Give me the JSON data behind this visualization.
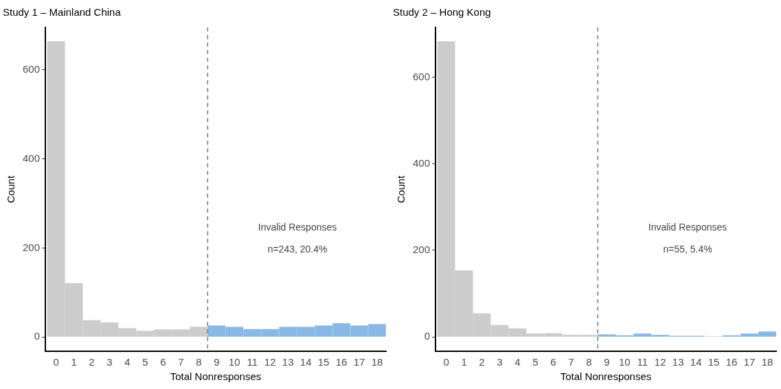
{
  "chart_data": [
    {
      "type": "histogram",
      "title": "Study 1 – Mainland China",
      "xlabel": "Total Nonresponses",
      "ylabel": "Count",
      "bins": [
        -0.5,
        0.5,
        1.5,
        2.5,
        3.5,
        4.5,
        5.5,
        6.5,
        7.5,
        8.5,
        9.5,
        10.5,
        11.5,
        12.5,
        13.5,
        14.5,
        15.5,
        16.5,
        17.5,
        18.5
      ],
      "values": [
        664,
        121,
        38,
        33,
        20,
        14,
        17,
        17,
        23,
        26,
        23,
        18,
        18,
        23,
        23,
        26,
        31,
        26,
        29
      ],
      "colors": [
        "#cccccc",
        "#cccccc",
        "#cccccc",
        "#cccccc",
        "#cccccc",
        "#cccccc",
        "#cccccc",
        "#cccccc",
        "#cccccc",
        "#8ab8e6",
        "#8ab8e6",
        "#8ab8e6",
        "#8ab8e6",
        "#8ab8e6",
        "#8ab8e6",
        "#8ab8e6",
        "#8ab8e6",
        "#8ab8e6",
        "#8ab8e6"
      ],
      "xlim": [
        -0.6,
        18.5
      ],
      "xticks": [
        0,
        1,
        2,
        3,
        4,
        5,
        6,
        7,
        8,
        9,
        10,
        11,
        12,
        13,
        14,
        15,
        16,
        17,
        18
      ],
      "ylim": [
        -32,
        695
      ],
      "yticks": [
        0,
        200,
        400,
        600
      ],
      "ref_lines": [
        {
          "axis": "x",
          "value": 8.5,
          "color": "#757575",
          "line_style": "dashed"
        }
      ],
      "annotations": [
        "Invalid Responses",
        "n=243, 20.4%"
      ],
      "grid": false,
      "legend": false
    },
    {
      "type": "histogram",
      "title": "Study 2 – Hong Kong",
      "xlabel": "Total Nonresponses",
      "ylabel": "Count",
      "bins": [
        -0.5,
        0.5,
        1.5,
        2.5,
        3.5,
        4.5,
        5.5,
        6.5,
        7.5,
        8.5,
        9.5,
        10.5,
        11.5,
        12.5,
        13.5,
        14.5,
        15.5,
        16.5,
        17.5,
        18.5
      ],
      "values": [
        683,
        154,
        55,
        28,
        20,
        8,
        9,
        5,
        5,
        6,
        4,
        8,
        5,
        3,
        3,
        1,
        4,
        8,
        13
      ],
      "colors": [
        "#cccccc",
        "#cccccc",
        "#cccccc",
        "#cccccc",
        "#cccccc",
        "#cccccc",
        "#cccccc",
        "#cccccc",
        "#cccccc",
        "#8ab8e6",
        "#8ab8e6",
        "#8ab8e6",
        "#8ab8e6",
        "#8ab8e6",
        "#8ab8e6",
        "#8ab8e6",
        "#8ab8e6",
        "#8ab8e6",
        "#8ab8e6"
      ],
      "xlim": [
        -0.6,
        18.5
      ],
      "xticks": [
        0,
        1,
        2,
        3,
        4,
        5,
        6,
        7,
        8,
        9,
        10,
        11,
        12,
        13,
        14,
        15,
        16,
        17,
        18
      ],
      "ylim": [
        -33,
        715
      ],
      "yticks": [
        0,
        200,
        400,
        600
      ],
      "ref_lines": [
        {
          "axis": "x",
          "value": 8.5,
          "color": "#757575",
          "line_style": "dashed"
        }
      ],
      "annotations": [
        "Invalid Responses",
        "n=55, 5.4%"
      ],
      "grid": false,
      "legend": false
    }
  ]
}
